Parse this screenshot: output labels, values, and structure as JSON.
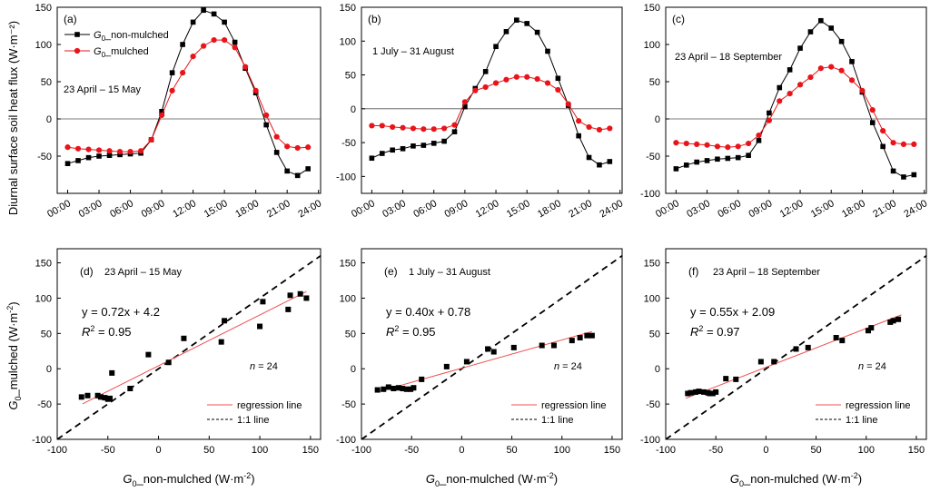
{
  "colors": {
    "non_mulched": "#000000",
    "mulched": "#e8141a",
    "regression": "#f0504f",
    "one_to_one": "#000000",
    "zero_line": "#555555"
  },
  "figure": {
    "ylabel_top": "Diurnal surface soil heat flux (W·m⁻²)",
    "ylabel_bottom_parts": [
      "G",
      "0",
      "_mulched (W·m",
      "-2",
      ")"
    ],
    "xlabel_bottom_parts": [
      "G",
      "0",
      "_non-mulched (W·m",
      "-2",
      ")"
    ],
    "legend_top": [
      {
        "sub": "0",
        "rest": "_non-mulched",
        "series": "non_mulched"
      },
      {
        "sub": "0",
        "rest": "_mulched",
        "series": "mulched"
      }
    ],
    "legend_bottom": [
      "regression line",
      "1:1 line"
    ],
    "n_label": "n = 24"
  },
  "chart_data": [
    {
      "id": "a",
      "type": "line",
      "label": "(a)",
      "period": "23 April –  15 May",
      "x": [
        "00:00",
        "01:00",
        "02:00",
        "03:00",
        "04:00",
        "05:00",
        "06:00",
        "07:00",
        "08:00",
        "09:00",
        "10:00",
        "11:00",
        "12:00",
        "13:00",
        "14:00",
        "15:00",
        "16:00",
        "17:00",
        "18:00",
        "19:00",
        "20:00",
        "21:00",
        "22:00",
        "23:00"
      ],
      "xticks": [
        "00:00",
        "03:00",
        "06:00",
        "09:00",
        "12:00",
        "15:00",
        "18:00",
        "21:00",
        "24:00"
      ],
      "ylim": [
        -100,
        150
      ],
      "yticks": [
        -50,
        0,
        50,
        100,
        150
      ],
      "series": [
        {
          "name": "G0_non-mulched",
          "key": "non_mulched",
          "values": [
            -60,
            -56,
            -52,
            -50,
            -49,
            -48,
            -47,
            -46,
            -28,
            10,
            62,
            100,
            130,
            146,
            141,
            130,
            103,
            68,
            35,
            -8,
            -45,
            -70,
            -76,
            -67
          ]
        },
        {
          "name": "G0_mulched",
          "key": "mulched",
          "values": [
            -38,
            -40,
            -41,
            -42,
            -43,
            -44,
            -44,
            -43,
            -28,
            5,
            38,
            62,
            84,
            98,
            106,
            106,
            96,
            70,
            38,
            5,
            -24,
            -37,
            -39,
            -38
          ]
        }
      ]
    },
    {
      "id": "b",
      "type": "line",
      "label": "(b)",
      "period": "1 July – 31 August",
      "x": [
        "00:00",
        "01:00",
        "02:00",
        "03:00",
        "04:00",
        "05:00",
        "06:00",
        "07:00",
        "08:00",
        "09:00",
        "10:00",
        "11:00",
        "12:00",
        "13:00",
        "14:00",
        "15:00",
        "16:00",
        "17:00",
        "18:00",
        "19:00",
        "20:00",
        "21:00",
        "22:00",
        "23:00"
      ],
      "xticks": [
        "00:00",
        "03:00",
        "06:00",
        "09:00",
        "12:00",
        "15:00",
        "18:00",
        "21:00",
        "24:00"
      ],
      "ylim": [
        -125,
        150
      ],
      "yticks": [
        -100,
        -50,
        0,
        50,
        100,
        150
      ],
      "series": [
        {
          "name": "G0_non-mulched",
          "key": "non_mulched",
          "values": [
            -73,
            -66,
            -61,
            -59,
            -55,
            -54,
            -51,
            -48,
            -34,
            3,
            30,
            55,
            92,
            114,
            131,
            126,
            113,
            85,
            45,
            5,
            -40,
            -72,
            -83,
            -78
          ]
        },
        {
          "name": "G0_mulched",
          "key": "mulched",
          "values": [
            -25,
            -25,
            -27,
            -28,
            -29,
            -30,
            -30,
            -29,
            -24,
            10,
            27,
            32,
            38,
            43,
            47,
            47,
            44,
            38,
            28,
            7,
            -18,
            -27,
            -31,
            -29
          ]
        }
      ]
    },
    {
      "id": "c",
      "type": "line",
      "label": "(c)",
      "period": "23 April – 18 September",
      "x": [
        "00:00",
        "01:00",
        "02:00",
        "03:00",
        "04:00",
        "05:00",
        "06:00",
        "07:00",
        "08:00",
        "09:00",
        "10:00",
        "11:00",
        "12:00",
        "13:00",
        "14:00",
        "15:00",
        "16:00",
        "17:00",
        "18:00",
        "19:00",
        "20:00",
        "21:00",
        "22:00",
        "23:00"
      ],
      "xticks": [
        "00:00",
        "03:00",
        "06:00",
        "09:00",
        "12:00",
        "15:00",
        "18:00",
        "21:00",
        "24:00"
      ],
      "ylim": [
        -100,
        150
      ],
      "yticks": [
        -100,
        -50,
        0,
        50,
        100,
        150
      ],
      "series": [
        {
          "name": "G0_non-mulched",
          "key": "non_mulched",
          "values": [
            -67,
            -62,
            -58,
            -56,
            -54,
            -53,
            -52,
            -49,
            -29,
            8,
            42,
            66,
            95,
            117,
            132,
            122,
            104,
            77,
            36,
            -5,
            -37,
            -70,
            -78,
            -75
          ]
        },
        {
          "name": "G0_mulched",
          "key": "mulched",
          "values": [
            -32,
            -33,
            -34,
            -35,
            -37,
            -38,
            -37,
            -33,
            -22,
            -2,
            24,
            34,
            46,
            56,
            68,
            70,
            65,
            52,
            38,
            12,
            -16,
            -32,
            -34,
            -34
          ]
        }
      ]
    },
    {
      "id": "d",
      "type": "scatter",
      "label": "(d)",
      "period": "23 April –  15 May",
      "equation": {
        "lhs": "y = 0.72x + 4.2",
        "r2": "= 0.95"
      },
      "xlim": [
        -100,
        160
      ],
      "ylim": [
        -100,
        170
      ],
      "xticks": [
        -100,
        -50,
        0,
        50,
        100,
        150
      ],
      "yticks": [
        -100,
        -50,
        0,
        50,
        100,
        150
      ],
      "regression": {
        "slope": 0.72,
        "intercept": 4.2,
        "x_range": [
          -75,
          146
        ]
      },
      "points": [
        [
          -76,
          -40
        ],
        [
          -70,
          -38
        ],
        [
          -60,
          -38
        ],
        [
          -57,
          -40
        ],
        [
          -53,
          -41
        ],
        [
          -50,
          -43
        ],
        [
          -48,
          -42
        ],
        [
          -46,
          -6
        ],
        [
          -28,
          -28
        ],
        [
          -10,
          20
        ],
        [
          10,
          9
        ],
        [
          25,
          43
        ],
        [
          62,
          38
        ],
        [
          65,
          68
        ],
        [
          100,
          60
        ],
        [
          103,
          95
        ],
        [
          128,
          84
        ],
        [
          130,
          104
        ],
        [
          140,
          106
        ],
        [
          146,
          100
        ]
      ]
    },
    {
      "id": "e",
      "type": "scatter",
      "label": "(e)",
      "period": "1 July – 31 August",
      "equation": {
        "lhs": "y = 0.40x + 0.78",
        "r2": "= 0.95"
      },
      "xlim": [
        -100,
        160
      ],
      "ylim": [
        -100,
        170
      ],
      "xticks": [
        -100,
        -50,
        0,
        50,
        100,
        150
      ],
      "yticks": [
        -100,
        -50,
        0,
        50,
        100,
        150
      ],
      "regression": {
        "slope": 0.4,
        "intercept": 0.78,
        "x_range": [
          -85,
          130
        ]
      },
      "points": [
        [
          -84,
          -30
        ],
        [
          -78,
          -29
        ],
        [
          -73,
          -26
        ],
        [
          -68,
          -28
        ],
        [
          -63,
          -27
        ],
        [
          -59,
          -28
        ],
        [
          -55,
          -29
        ],
        [
          -51,
          -29
        ],
        [
          -48,
          -27
        ],
        [
          -40,
          -15
        ],
        [
          -15,
          3
        ],
        [
          5,
          10
        ],
        [
          26,
          28
        ],
        [
          32,
          24
        ],
        [
          52,
          30
        ],
        [
          80,
          33
        ],
        [
          92,
          33
        ],
        [
          110,
          40
        ],
        [
          118,
          44
        ],
        [
          125,
          47
        ],
        [
          130,
          47
        ]
      ]
    },
    {
      "id": "f",
      "type": "scatter",
      "label": "(f)",
      "period": "23 April – 18 September",
      "equation": {
        "lhs": "y = 0.55x + 2.09",
        "r2": "= 0.97"
      },
      "xlim": [
        -100,
        160
      ],
      "ylim": [
        -100,
        170
      ],
      "xticks": [
        -100,
        -50,
        0,
        50,
        100,
        150
      ],
      "yticks": [
        -100,
        -50,
        0,
        50,
        100,
        150
      ],
      "regression": {
        "slope": 0.55,
        "intercept": 2.09,
        "x_range": [
          -80,
          135
        ]
      },
      "points": [
        [
          -78,
          -35
        ],
        [
          -75,
          -34
        ],
        [
          -70,
          -33
        ],
        [
          -67,
          -32
        ],
        [
          -62,
          -33
        ],
        [
          -58,
          -34
        ],
        [
          -56,
          -35
        ],
        [
          -53,
          -35
        ],
        [
          -50,
          -33
        ],
        [
          -40,
          -14
        ],
        [
          -30,
          -15
        ],
        [
          -5,
          10
        ],
        [
          8,
          10
        ],
        [
          30,
          28
        ],
        [
          42,
          30
        ],
        [
          70,
          44
        ],
        [
          76,
          40
        ],
        [
          102,
          54
        ],
        [
          105,
          58
        ],
        [
          124,
          66
        ],
        [
          127,
          68
        ],
        [
          132,
          70
        ]
      ]
    }
  ]
}
